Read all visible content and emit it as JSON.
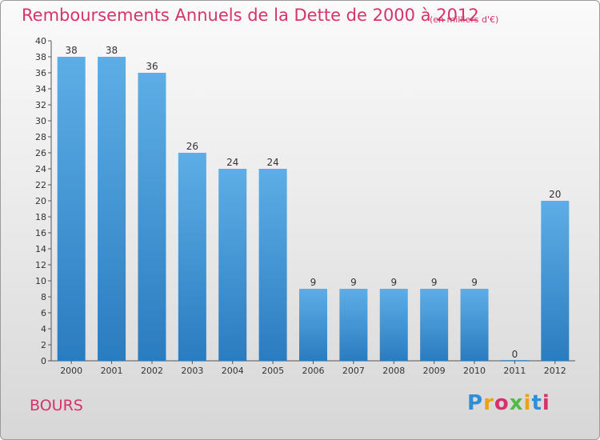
{
  "header": {
    "title": "Remboursements Annuels de la Dette de 2000 à 2012",
    "unit": "(en milliers d'€)"
  },
  "footer": {
    "place": "BOURS",
    "logo_text": "Proxiti"
  },
  "colors": {
    "title": "#d6336c",
    "bar_top": "#5daee6",
    "bar_bottom": "#2a7cc0"
  },
  "chart_data": {
    "type": "bar",
    "categories": [
      "2000",
      "2001",
      "2002",
      "2003",
      "2004",
      "2005",
      "2006",
      "2007",
      "2008",
      "2009",
      "2010",
      "2011",
      "2012"
    ],
    "values": [
      38,
      38,
      36,
      26,
      24,
      24,
      9,
      9,
      9,
      9,
      9,
      0,
      20
    ],
    "ylim": [
      0,
      40
    ],
    "yticks": [
      0,
      2,
      4,
      6,
      8,
      10,
      12,
      14,
      16,
      18,
      20,
      22,
      24,
      26,
      28,
      30,
      32,
      34,
      36,
      38,
      40
    ],
    "grid": false,
    "legend": "none"
  }
}
